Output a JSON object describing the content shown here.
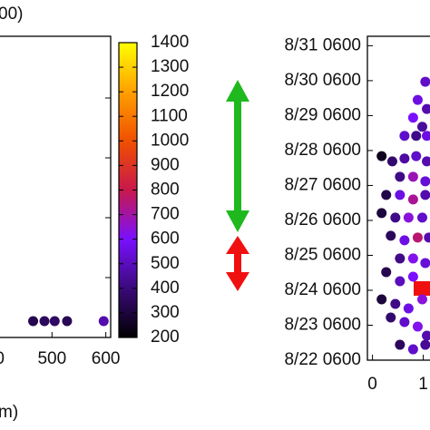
{
  "chart_data": [
    {
      "type": "scatter",
      "title": "00)",
      "x_label": "m)",
      "x": [
        465,
        486,
        505,
        528,
        596
      ],
      "c": [
        330,
        350,
        360,
        340,
        480
      ],
      "xlim": [
        395,
        609
      ],
      "xticks": [
        {
          "value": 400,
          "label": "0"
        },
        500,
        600
      ],
      "colormap": [
        "#000000",
        "#3a0a7a",
        "#7a10ff",
        "#c8184c",
        "#f05000",
        "#ffa000",
        "#ffff00"
      ],
      "clim": [
        200,
        1400
      ],
      "cticks": [
        200,
        300,
        400,
        500,
        600,
        700,
        800,
        900,
        1000,
        1100,
        1200,
        1300,
        1400
      ]
    },
    {
      "type": "scatter",
      "x": [
        1.04,
        0.89,
        1.07,
        0.8,
        0.98,
        0.63,
        0.86,
        1.07,
        0.18,
        0.39,
        0.63,
        0.86,
        1.07,
        0.54,
        0.8,
        1.04,
        0.27,
        0.54,
        0.8,
        1.04,
        0.18,
        0.45,
        0.71,
        0.98,
        0.36,
        0.63,
        0.89,
        1.11,
        0.54,
        0.8,
        1.04,
        0.27,
        0.54,
        0.8,
        0.18,
        0.45,
        0.71,
        0.98,
        0.36,
        0.63,
        0.89,
        1.07,
        0.54,
        0.8,
        1.04
      ],
      "y": [
        29.97,
        29.45,
        29.19,
        28.94,
        28.68,
        28.42,
        28.42,
        28.42,
        27.84,
        27.69,
        27.77,
        27.84,
        27.69,
        27.25,
        27.25,
        27.12,
        26.73,
        26.73,
        26.6,
        26.73,
        26.21,
        26.08,
        26.08,
        26.08,
        25.56,
        25.43,
        25.51,
        25.51,
        24.91,
        24.91,
        24.78,
        24.52,
        24.26,
        24.39,
        23.74,
        23.61,
        23.48,
        23.74,
        23.22,
        23.09,
        22.96,
        22.7,
        22.44,
        22.31,
        22.44
      ],
      "c": [
        520,
        560,
        480,
        600,
        450,
        520,
        420,
        560,
        250,
        380,
        460,
        520,
        480,
        420,
        680,
        540,
        320,
        560,
        720,
        480,
        300,
        420,
        640,
        520,
        350,
        560,
        760,
        480,
        420,
        620,
        540,
        330,
        500,
        600,
        300,
        420,
        560,
        640,
        380,
        520,
        620,
        480,
        350,
        520,
        440
      ],
      "xlim": [
        -0.1,
        1.15
      ],
      "xticks": [
        0,
        1
      ],
      "ylim": [
        22,
        31.27
      ],
      "yticks": [
        {
          "value": 22,
          "label": "8/22 0600"
        },
        {
          "value": 23,
          "label": "8/23 0600"
        },
        {
          "value": 24,
          "label": "8/24 0600"
        },
        {
          "value": 25,
          "label": "8/25 0600"
        },
        {
          "value": 26,
          "label": "8/26 0600"
        },
        {
          "value": 27,
          "label": "8/27 0600"
        },
        {
          "value": 28,
          "label": "8/28 0600"
        },
        {
          "value": 29,
          "label": "8/29 0600"
        },
        {
          "value": 30,
          "label": "8/30 0600"
        },
        {
          "value": 31,
          "label": "8/31 0600"
        }
      ]
    }
  ]
}
